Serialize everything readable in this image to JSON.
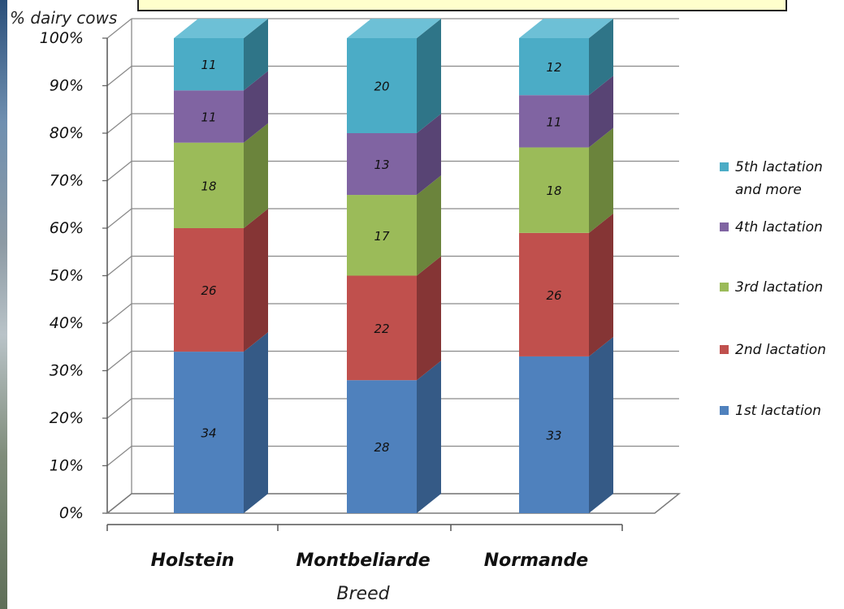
{
  "chart_data": {
    "type": "bar",
    "stacked": true,
    "three_d": true,
    "ylabel": "% dairy cows",
    "xlabel": "Breed",
    "ylim": [
      0,
      100
    ],
    "yticks": [
      "0%",
      "10%",
      "20%",
      "30%",
      "40%",
      "50%",
      "60%",
      "70%",
      "80%",
      "90%",
      "100%"
    ],
    "categories": [
      "Holstein",
      "Montbeliarde",
      "Normande"
    ],
    "series": [
      {
        "name": "1st lactation",
        "values": [
          34,
          28,
          33
        ],
        "color": "#4f81bd",
        "side": "#355a86",
        "top": "#6d97cc"
      },
      {
        "name": "2nd lactation",
        "values": [
          26,
          22,
          26
        ],
        "color": "#c0504d",
        "side": "#853535",
        "top": "#cf6c69"
      },
      {
        "name": "3rd lactation",
        "values": [
          18,
          17,
          18
        ],
        "color": "#9bbb59",
        "side": "#6b843c",
        "top": "#b0cc78"
      },
      {
        "name": "4th lactation",
        "values": [
          11,
          13,
          11
        ],
        "color": "#8064a2",
        "side": "#584474",
        "top": "#977dbb"
      },
      {
        "name": "5th lactation and more",
        "values": [
          11,
          20,
          12
        ],
        "color": "#4bacc6",
        "side": "#2f7588",
        "top": "#6dc0d6"
      }
    ],
    "legend_position": "right",
    "grid": true
  }
}
